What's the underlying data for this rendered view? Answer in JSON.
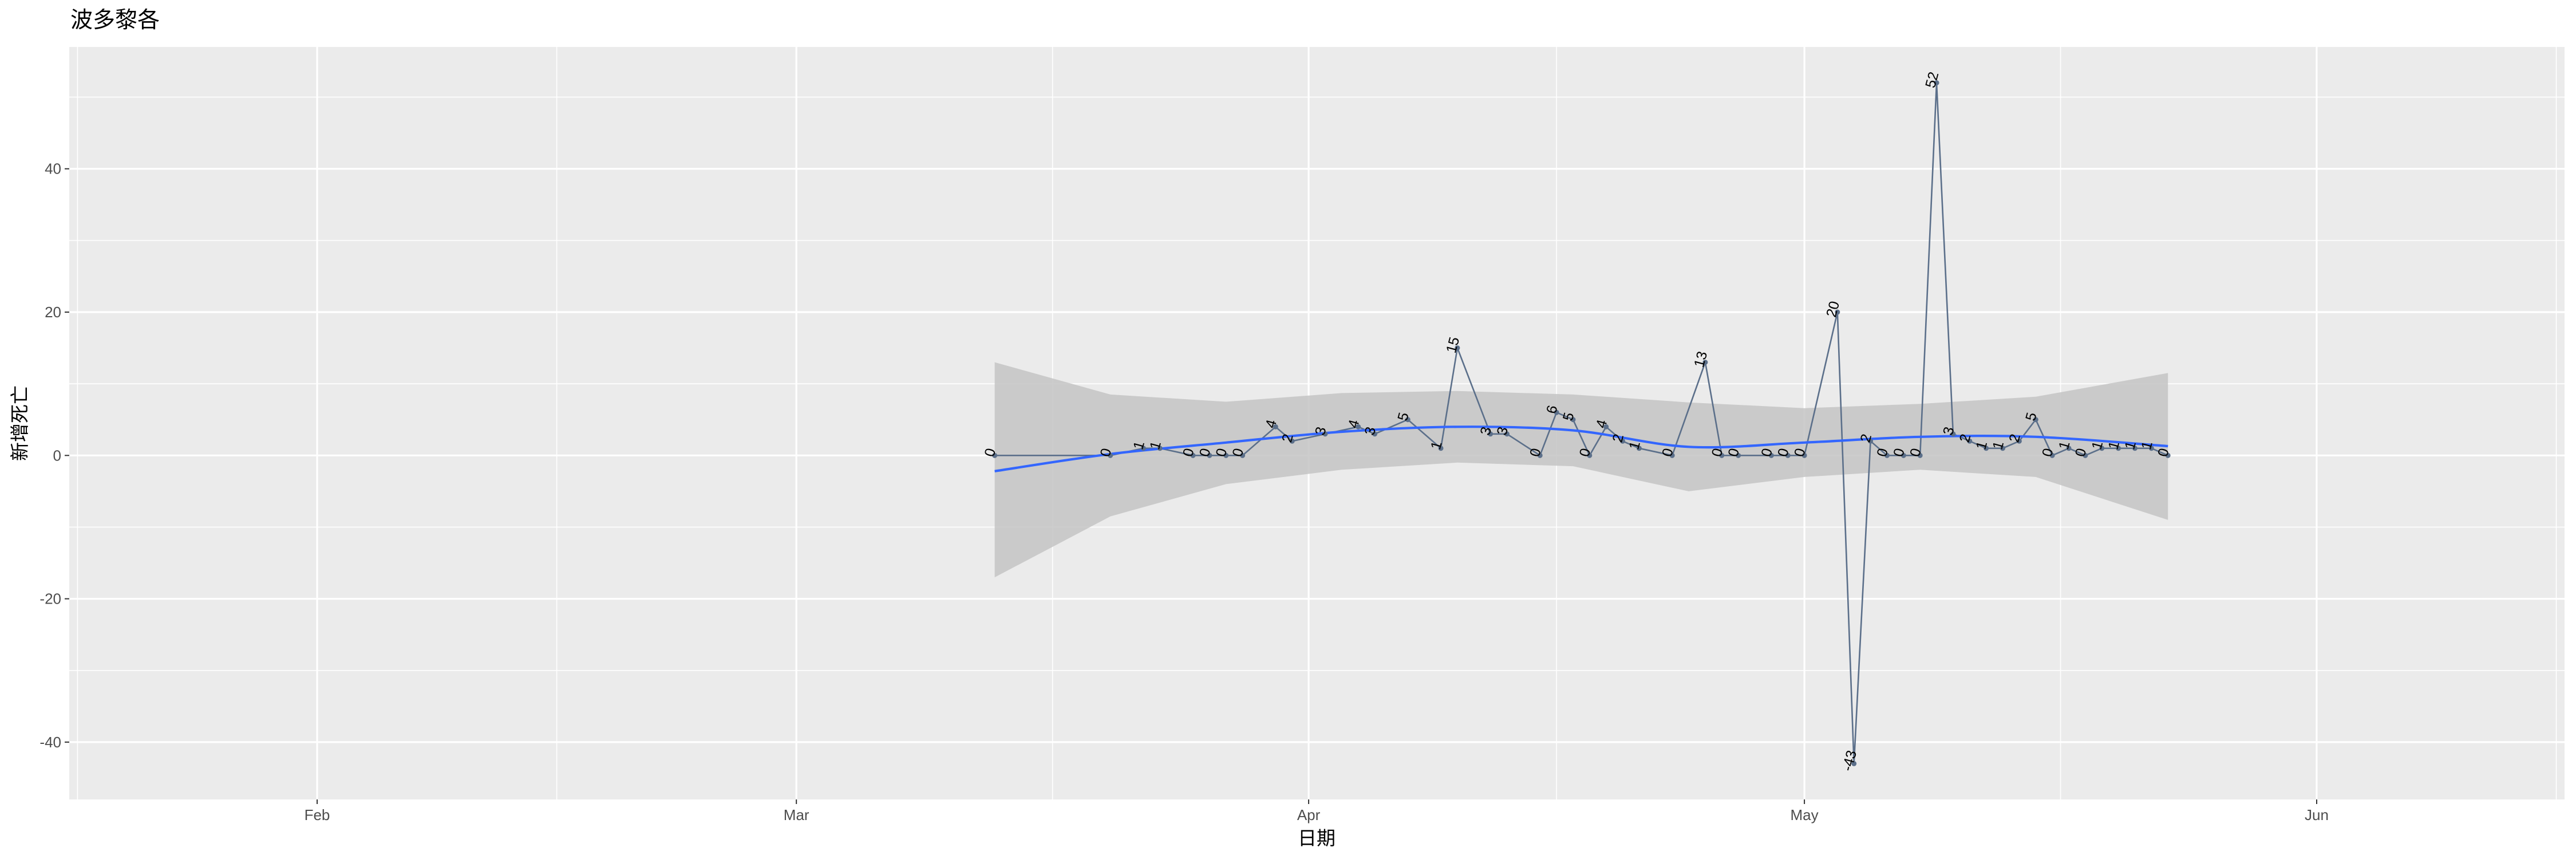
{
  "chart_data": {
    "type": "line",
    "title": "波多黎各",
    "xlabel": "日期",
    "ylabel": "新增死亡",
    "x_tick_labels": [
      "Feb",
      "Mar",
      "Apr",
      "May",
      "Jun"
    ],
    "x_tick_dates": [
      "2020-02-01",
      "2020-03-01",
      "2020-04-01",
      "2020-05-01",
      "2020-06-01"
    ],
    "y_ticks": [
      -40,
      -20,
      0,
      20,
      40
    ],
    "xlim": [
      "2020-01-17",
      "2020-06-16"
    ],
    "ylim": [
      -48,
      57
    ],
    "grid": true,
    "legend": "none",
    "colors": {
      "panel": "#ebebeb",
      "grid": "#ffffff",
      "series_line": "#5b6f8a",
      "smooth_line": "#3366ff",
      "ribbon": "#c4c4c4"
    },
    "series": [
      {
        "x": [
          "2020-03-13",
          "2020-03-20",
          "2020-03-22",
          "2020-03-23",
          "2020-03-25",
          "2020-03-26",
          "2020-03-27",
          "2020-03-28",
          "2020-03-30",
          "2020-03-31",
          "2020-04-02",
          "2020-04-04",
          "2020-04-05",
          "2020-04-07",
          "2020-04-09",
          "2020-04-10",
          "2020-04-12",
          "2020-04-13",
          "2020-04-15",
          "2020-04-16",
          "2020-04-17",
          "2020-04-18",
          "2020-04-19",
          "2020-04-20",
          "2020-04-21",
          "2020-04-23",
          "2020-04-25",
          "2020-04-26",
          "2020-04-27",
          "2020-04-29",
          "2020-04-30",
          "2020-05-01",
          "2020-05-03",
          "2020-05-04",
          "2020-05-05",
          "2020-05-06",
          "2020-05-07",
          "2020-05-08",
          "2020-05-09",
          "2020-05-10",
          "2020-05-11",
          "2020-05-12",
          "2020-05-13",
          "2020-05-14",
          "2020-05-15",
          "2020-05-16",
          "2020-05-17",
          "2020-05-18",
          "2020-05-19",
          "2020-05-20",
          "2020-05-21",
          "2020-05-22",
          "2020-05-23"
        ],
        "y": [
          0,
          0,
          1,
          1,
          0,
          0,
          0,
          0,
          4,
          2,
          3,
          4,
          3,
          5,
          1,
          15,
          3,
          3,
          0,
          6,
          5,
          0,
          4,
          2,
          1,
          0,
          13,
          0,
          0,
          0,
          0,
          0,
          20,
          -43,
          2,
          0,
          0,
          0,
          52,
          3,
          2,
          1,
          1,
          2,
          5,
          0,
          1,
          0,
          1,
          1,
          1,
          1,
          0
        ]
      }
    ],
    "smooth": {
      "x": [
        "2020-03-13",
        "2020-03-20",
        "2020-03-27",
        "2020-04-03",
        "2020-04-10",
        "2020-04-17",
        "2020-04-24",
        "2020-05-01",
        "2020-05-08",
        "2020-05-15",
        "2020-05-23"
      ],
      "y": [
        -2.2,
        0.2,
        1.8,
        3.3,
        4.0,
        3.5,
        1.2,
        1.8,
        2.6,
        2.6,
        1.3
      ],
      "lower": [
        -17,
        -8.5,
        -4.0,
        -2.0,
        -1.0,
        -1.5,
        -5.0,
        -3.0,
        -2.0,
        -3.0,
        -9.0
      ],
      "upper": [
        13,
        8.5,
        7.5,
        8.7,
        9.0,
        8.5,
        7.4,
        6.6,
        7.2,
        8.2,
        11.5
      ]
    }
  }
}
